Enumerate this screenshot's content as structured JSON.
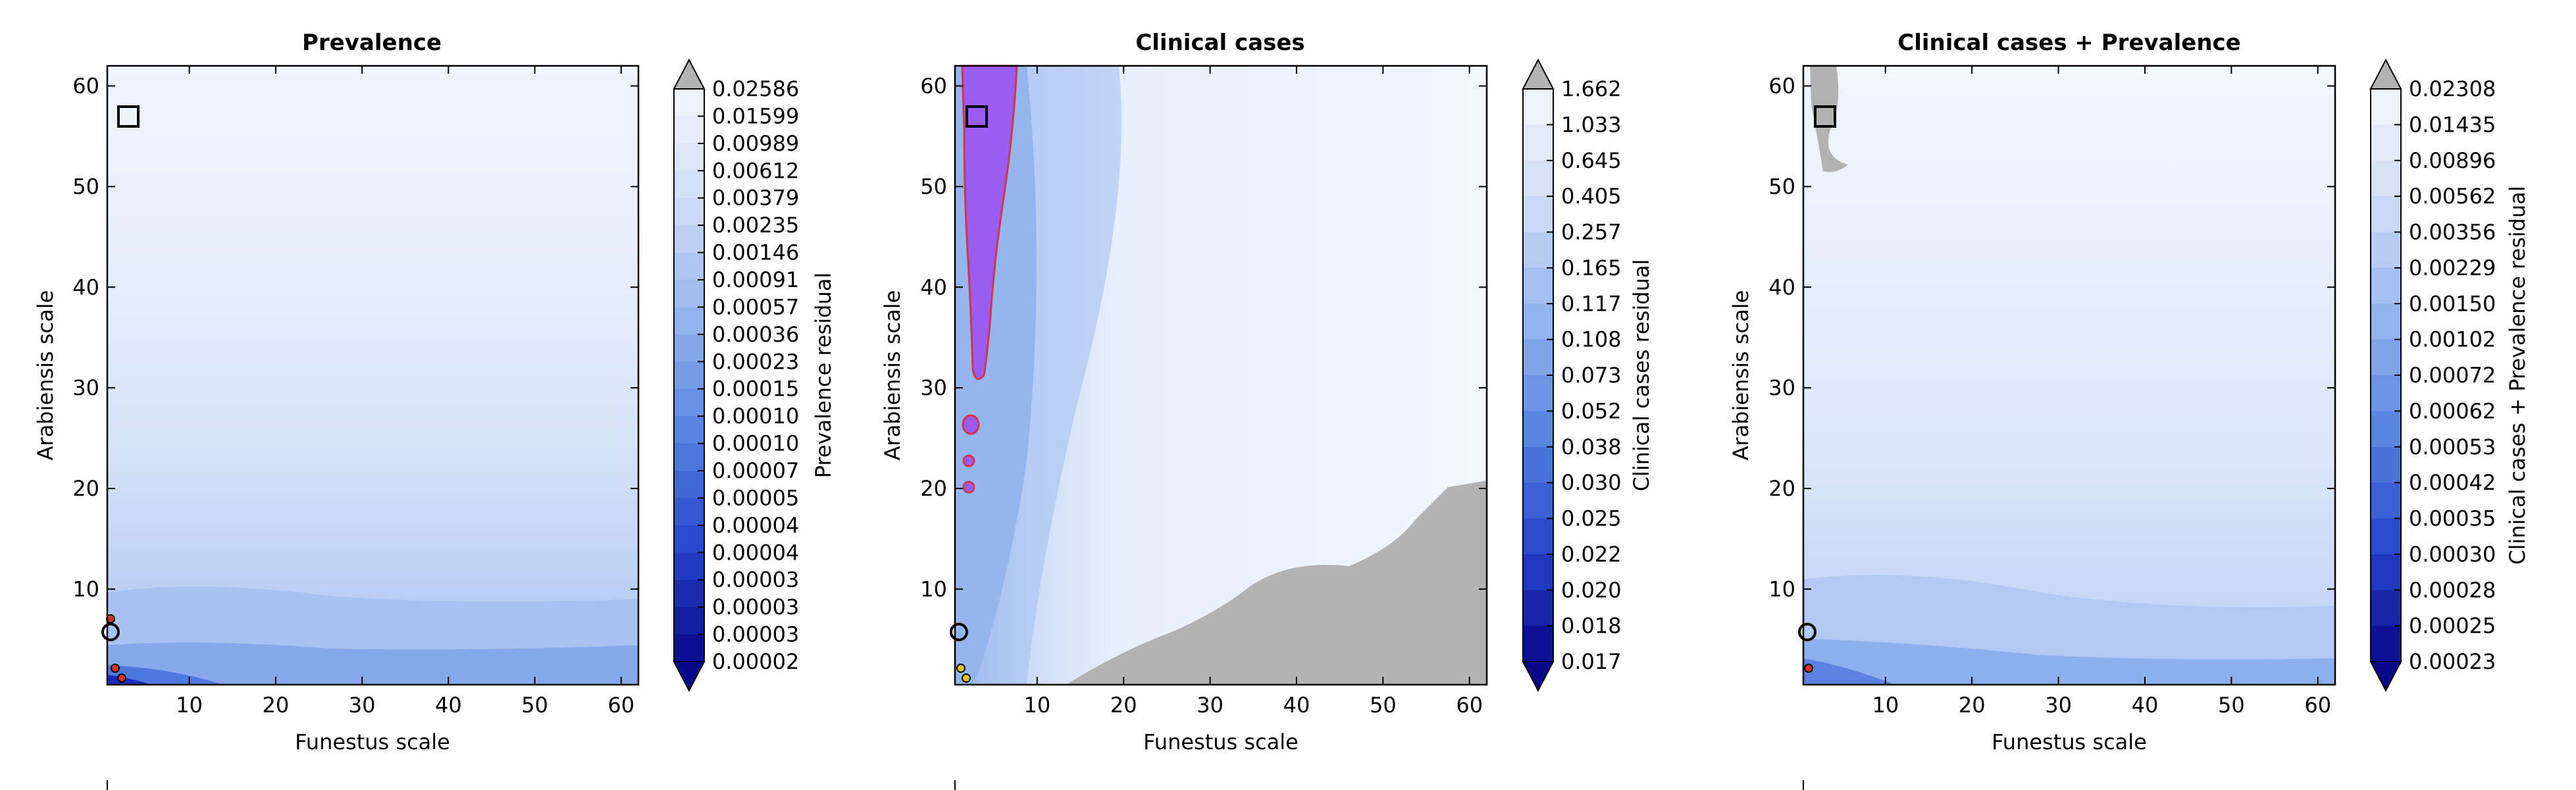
{
  "colors": {
    "background": "#ffffff",
    "saturated_region": "#b3b3b3",
    "low_residual": "#08088a",
    "high_residual": "#f2f6fd",
    "best_region_fill": "#9b5cf0",
    "best_region_edge": "#d0364a",
    "marker_square": "#000000",
    "marker_red": "#d73027",
    "marker_yellow": "#e6c229"
  },
  "chart_data": [
    {
      "type": "heatmap",
      "title": "Prevalence",
      "xlabel": "Funestus scale",
      "ylabel": "Arabiensis scale",
      "xlim": [
        0.5,
        62
      ],
      "ylim": [
        0.5,
        62
      ],
      "xticks": [
        10,
        20,
        30,
        40,
        50,
        60
      ],
      "yticks": [
        10,
        20,
        30,
        40,
        50,
        60
      ],
      "colorbar": {
        "label": "Prevalence residual",
        "extend": "both",
        "levels": [
          "0.02586",
          "0.01599",
          "0.00989",
          "0.00612",
          "0.00379",
          "0.00235",
          "0.00146",
          "0.00091",
          "0.00057",
          "0.00036",
          "0.00023",
          "0.00015",
          "0.00010",
          "0.00010",
          "0.00007",
          "0.00005",
          "0.00004",
          "0.00004",
          "0.00003",
          "0.00003",
          "0.00003",
          "0.00002"
        ]
      },
      "marker_square": [
        2.5,
        57
      ]
    },
    {
      "type": "heatmap",
      "title": "Clinical cases",
      "xlabel": "Funestus scale",
      "ylabel": "Arabiensis scale",
      "xlim": [
        0.5,
        62
      ],
      "ylim": [
        0.5,
        62
      ],
      "xticks": [
        10,
        20,
        30,
        40,
        50,
        60
      ],
      "yticks": [
        10,
        20,
        30,
        40,
        50,
        60
      ],
      "colorbar": {
        "label": "Clinical cases residual",
        "extend": "both",
        "levels": [
          "1.662",
          "1.033",
          "0.645",
          "0.405",
          "0.257",
          "0.165",
          "0.117",
          "0.108",
          "0.073",
          "0.052",
          "0.038",
          "0.030",
          "0.025",
          "0.022",
          "0.020",
          "0.018",
          "0.017"
        ]
      },
      "marker_square": [
        2.5,
        57
      ]
    },
    {
      "type": "heatmap",
      "title": "Clinical cases + Prevalence",
      "xlabel": "Funestus scale",
      "ylabel": "Arabiensis scale",
      "xlim": [
        0.5,
        62
      ],
      "ylim": [
        0.5,
        62
      ],
      "xticks": [
        10,
        20,
        30,
        40,
        50,
        60
      ],
      "yticks": [
        10,
        20,
        30,
        40,
        50,
        60
      ],
      "colorbar": {
        "label": "Clinical cases + Prevalence residual",
        "extend": "both",
        "levels": [
          "0.02308",
          "0.01435",
          "0.00896",
          "0.00562",
          "0.00356",
          "0.00229",
          "0.00150",
          "0.00102",
          "0.00072",
          "0.00062",
          "0.00053",
          "0.00042",
          "0.00035",
          "0.00030",
          "0.00028",
          "0.00025",
          "0.00023"
        ]
      },
      "marker_square": [
        2.5,
        57
      ]
    }
  ]
}
